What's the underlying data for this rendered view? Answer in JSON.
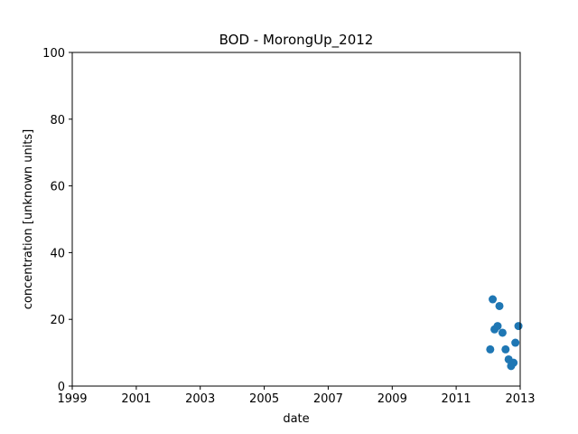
{
  "chart_data": {
    "type": "scatter",
    "title": "BOD - MorongUp_2012",
    "xlabel": "date",
    "ylabel": "concentration [unknown units]",
    "xlim": [
      "1999-01-01",
      "2013-01-01"
    ],
    "ylim": [
      0,
      100
    ],
    "x_ticks": [
      "1999",
      "2001",
      "2003",
      "2005",
      "2007",
      "2009",
      "2011",
      "2013"
    ],
    "y_ticks": [
      "0",
      "20",
      "40",
      "60",
      "80",
      "100"
    ],
    "grid": false,
    "series": [
      {
        "color": "#1f77b4",
        "points": [
          {
            "x": "2012-01-25",
            "y": 11
          },
          {
            "x": "2012-02-22",
            "y": 26
          },
          {
            "x": "2012-03-14",
            "y": 17
          },
          {
            "x": "2012-04-18",
            "y": 18
          },
          {
            "x": "2012-05-09",
            "y": 24
          },
          {
            "x": "2012-06-13",
            "y": 16
          },
          {
            "x": "2012-07-18",
            "y": 11
          },
          {
            "x": "2012-08-22",
            "y": 8
          },
          {
            "x": "2012-09-19",
            "y": 6
          },
          {
            "x": "2012-10-17",
            "y": 7
          },
          {
            "x": "2012-11-07",
            "y": 13
          },
          {
            "x": "2012-12-12",
            "y": 18
          }
        ]
      }
    ]
  }
}
